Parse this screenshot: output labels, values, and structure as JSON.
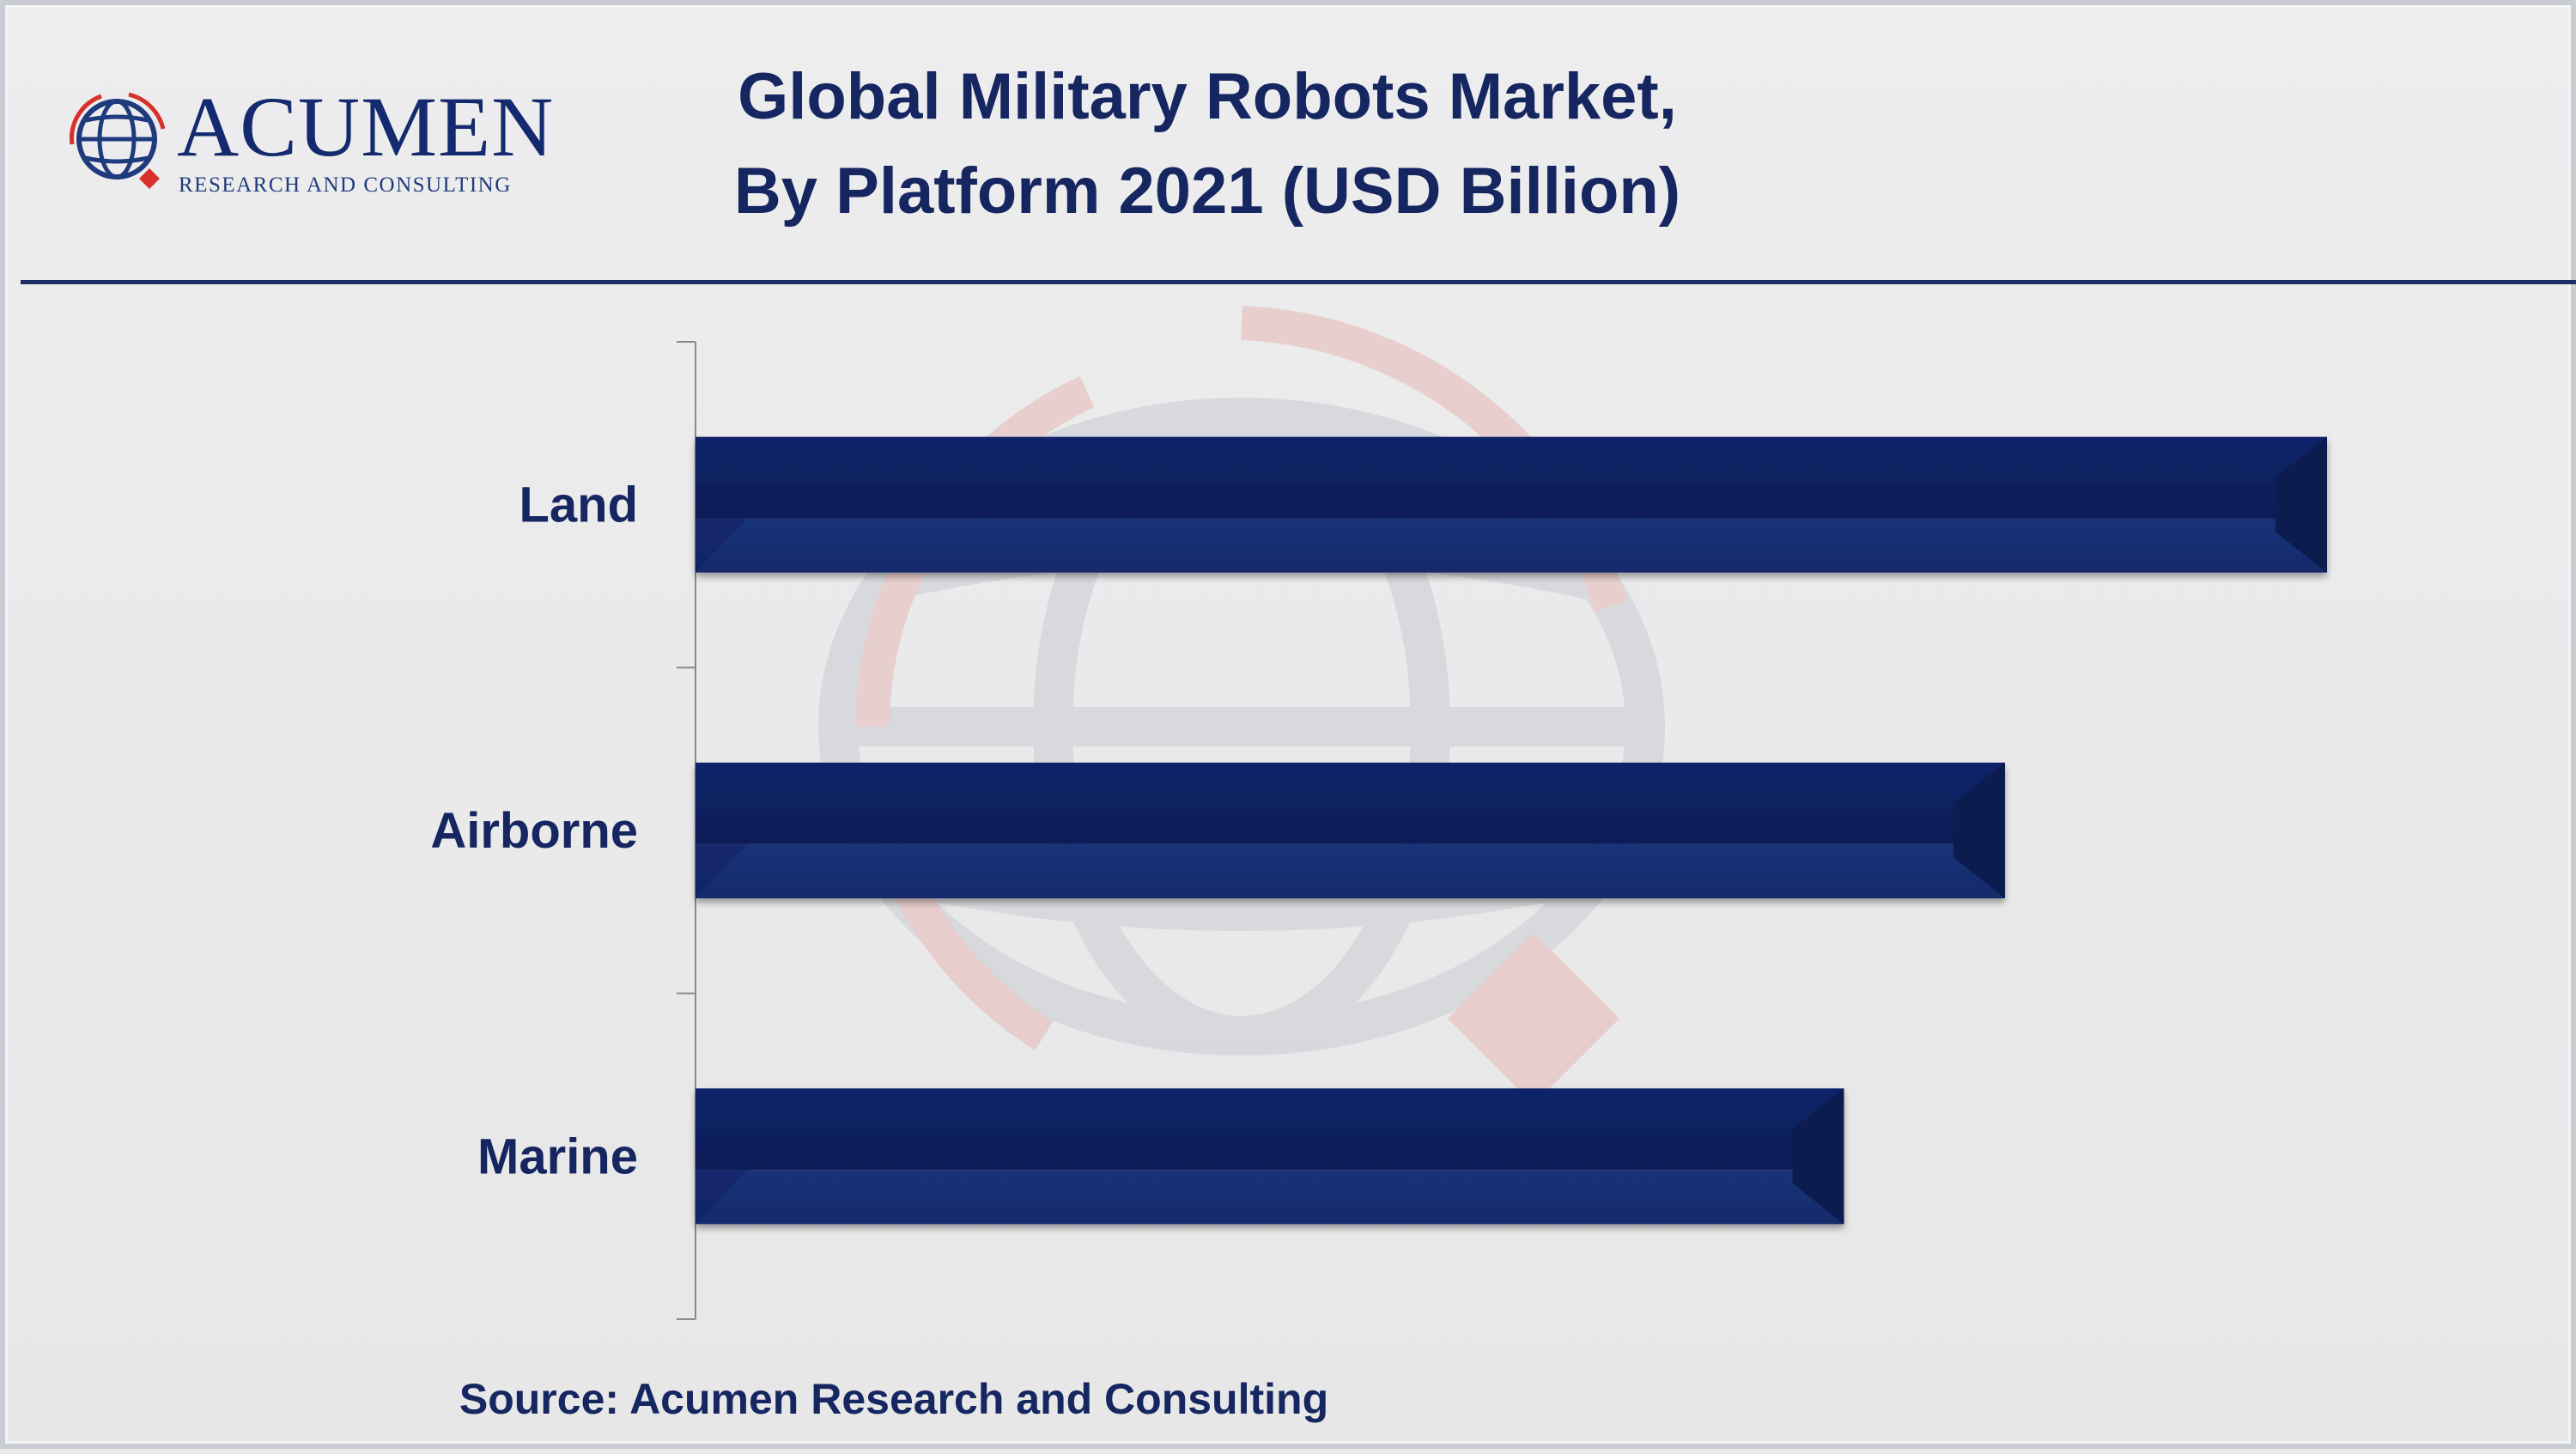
{
  "brand": {
    "name": "ACUMEN",
    "tagline": "RESEARCH AND CONSULTING"
  },
  "title_line1": "Global Military Robots Market,",
  "title_line2": "By Platform 2021 (USD Billion)",
  "source": "Source: Acumen Research and Consulting",
  "colors": {
    "bar": "#12266a",
    "bar_dark": "#0b1a4d",
    "text": "#162660",
    "logo_red": "#d8312c"
  },
  "chart_data": {
    "type": "bar",
    "orientation": "horizontal",
    "title": "Global Military Robots Market, By Platform 2021 (USD Billion)",
    "categories": [
      "Land",
      "Airborne",
      "Marine"
    ],
    "values": [
      7.6,
      6.1,
      5.35
    ],
    "xlim": [
      0,
      7.6
    ],
    "grid": false,
    "legend": "none",
    "value_axis_shown": false
  }
}
